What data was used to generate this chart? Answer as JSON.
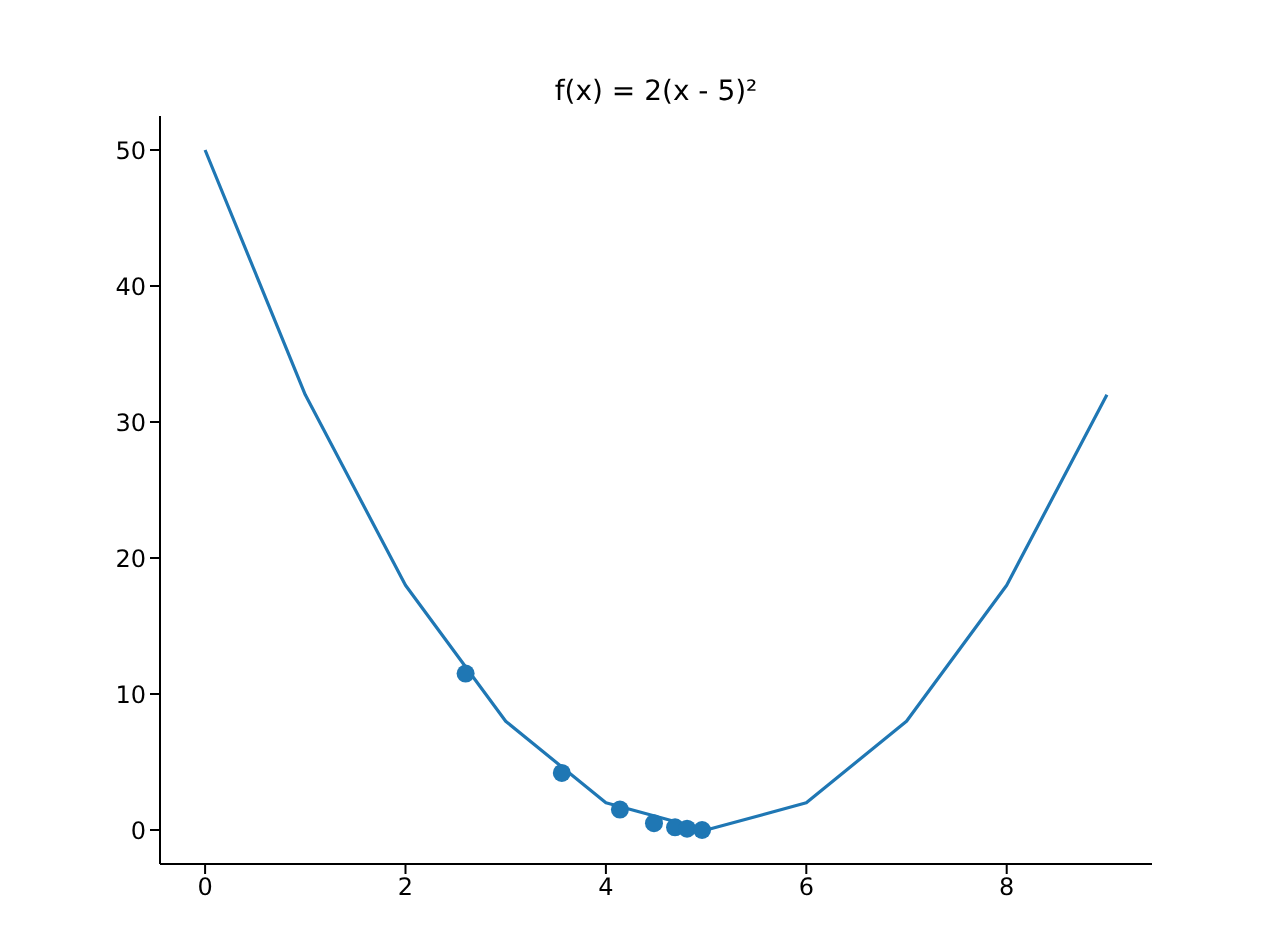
{
  "chart_data": {
    "type": "line",
    "title": "f(x) = 2(x - 5)²",
    "xlim": [
      -0.45,
      9.45
    ],
    "xticks": [
      0,
      2,
      4,
      6,
      8
    ],
    "ylim": [
      -2.5,
      52.5
    ],
    "yticks": [
      0,
      10,
      20,
      30,
      40,
      50
    ],
    "series": [
      {
        "color": "#1f77b4",
        "x": [
          0,
          1,
          2,
          3,
          4,
          5,
          6,
          7,
          8,
          9
        ],
        "values": [
          50,
          32,
          18,
          8,
          2,
          0,
          2,
          8,
          18,
          32
        ]
      },
      {
        "type": "scatter",
        "color": "#1f77b4",
        "marker": "circle",
        "x": [
          2.6,
          3.56,
          4.14,
          4.48,
          4.69,
          4.81,
          4.96
        ],
        "values": [
          11.5,
          4.2,
          1.5,
          0.5,
          0.2,
          0.1,
          0
        ]
      }
    ]
  }
}
